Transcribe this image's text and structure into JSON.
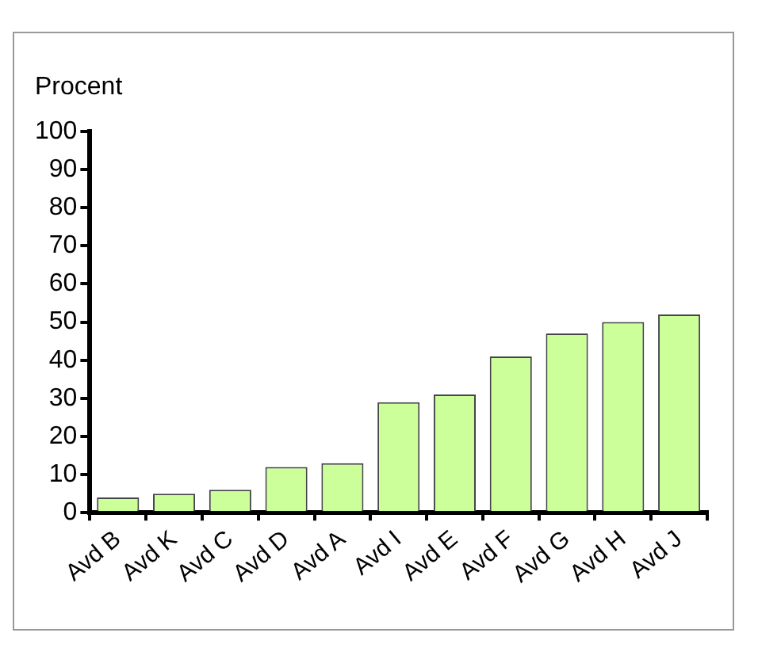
{
  "chart_data": {
    "type": "bar",
    "ylabel": "Procent",
    "categories": [
      "Avd B",
      "Avd K",
      "Avd C",
      "Avd D",
      "Avd A",
      "Avd I",
      "Avd E",
      "Avd F",
      "Avd G",
      "Avd H",
      "Avd J"
    ],
    "values": [
      4,
      5,
      6,
      12,
      13,
      29,
      31,
      41,
      47,
      50,
      52
    ],
    "color": "#ccff99",
    "ylim": [
      0,
      100
    ],
    "yticks": [
      0,
      10,
      20,
      30,
      40,
      50,
      60,
      70,
      80,
      90,
      100
    ],
    "grid": false,
    "legend": false
  }
}
